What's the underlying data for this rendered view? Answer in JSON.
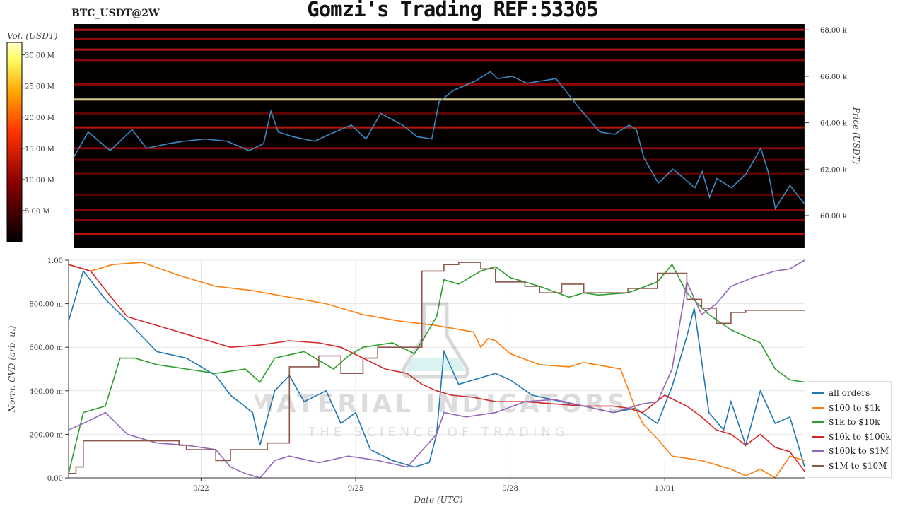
{
  "header": {
    "title": "Gomzi's Trading REF:53305",
    "symbol": "BTC_USDT@2W"
  },
  "watermark": {
    "brand": "MATERIAL INDICATORS",
    "tagline": "THE SCIENCE OF TRADING"
  },
  "chart_data": [
    {
      "type": "heatmap",
      "title": "",
      "colorbar": {
        "label": "Vol. (USDT)",
        "ticks": [
          "5.00 M",
          "10.00 M",
          "15.00 M",
          "20.00 M",
          "25.00 M",
          "30.00 M"
        ],
        "range": [
          0,
          32
        ],
        "colors": [
          "#000000",
          "#8b0000",
          "#ff3300",
          "#ffa500",
          "#ffff66",
          "#ffffcc"
        ]
      },
      "ylabel": "Price (USDT)",
      "yticks": [
        "60.00 k",
        "62.00 k",
        "64.00 k",
        "66.00 k",
        "68.00 k"
      ],
      "ylim": [
        58600,
        68250
      ],
      "price_series": {
        "color": "#3b88c3",
        "x": [
          0,
          0.02,
          0.05,
          0.08,
          0.1,
          0.13,
          0.15,
          0.18,
          0.21,
          0.24,
          0.26,
          0.27,
          0.28,
          0.3,
          0.33,
          0.35,
          0.38,
          0.4,
          0.42,
          0.45,
          0.47,
          0.49,
          0.5,
          0.52,
          0.55,
          0.57,
          0.58,
          0.6,
          0.62,
          0.64,
          0.66,
          0.69,
          0.72,
          0.74,
          0.76,
          0.77,
          0.78,
          0.8,
          0.82,
          0.85,
          0.86,
          0.87,
          0.88,
          0.9,
          0.92,
          0.94,
          0.95,
          0.96,
          0.98,
          1.0
        ],
        "y": [
          62500,
          63600,
          62800,
          63700,
          62900,
          63100,
          63200,
          63300,
          63200,
          62800,
          63100,
          64500,
          63600,
          63400,
          63200,
          63500,
          63900,
          63300,
          64400,
          63900,
          63400,
          63300,
          64900,
          65400,
          65800,
          66200,
          65900,
          66000,
          65700,
          65800,
          65900,
          64700,
          63600,
          63500,
          63900,
          63700,
          62500,
          61400,
          62000,
          61200,
          61900,
          60800,
          61600,
          61200,
          61800,
          62900,
          61900,
          60300,
          61300,
          60500
        ]
      },
      "levels": [
        {
          "price": 68000,
          "v": 13
        },
        {
          "price": 67600,
          "v": 11
        },
        {
          "price": 67150,
          "v": 16
        },
        {
          "price": 66700,
          "v": 9
        },
        {
          "price": 65650,
          "v": 12
        },
        {
          "price": 65000,
          "v": 30
        },
        {
          "price": 64400,
          "v": 8
        },
        {
          "price": 63800,
          "v": 14
        },
        {
          "price": 62900,
          "v": 10
        },
        {
          "price": 62400,
          "v": 8
        },
        {
          "price": 61800,
          "v": 7
        },
        {
          "price": 60900,
          "v": 6
        },
        {
          "price": 60250,
          "v": 9
        },
        {
          "price": 59800,
          "v": 12
        },
        {
          "price": 59200,
          "v": 14
        }
      ]
    },
    {
      "type": "line",
      "title": "",
      "xlabel": "Date (UTC)",
      "ylabel": "Norm. CVD (arb. u.)",
      "xticks": [
        {
          "label": "9/22",
          "x": 0.18
        },
        {
          "label": "9/25",
          "x": 0.39
        },
        {
          "label": "9/28",
          "x": 0.6
        },
        {
          "label": "10/01",
          "x": 0.81
        }
      ],
      "yticks": [
        "0.00",
        "200.00 m",
        "400.00 m",
        "600.00 m",
        "800.00 m",
        "1.00"
      ],
      "ylim": [
        0,
        1
      ],
      "series": [
        {
          "name": "all orders",
          "color": "#1f77b4",
          "x": [
            0,
            0.02,
            0.05,
            0.08,
            0.12,
            0.16,
            0.2,
            0.22,
            0.25,
            0.26,
            0.28,
            0.3,
            0.32,
            0.35,
            0.37,
            0.39,
            0.41,
            0.44,
            0.47,
            0.49,
            0.5,
            0.51,
            0.53,
            0.55,
            0.58,
            0.6,
            0.63,
            0.67,
            0.7,
            0.74,
            0.77,
            0.8,
            0.82,
            0.84,
            0.85,
            0.87,
            0.89,
            0.9,
            0.92,
            0.94,
            0.96,
            0.98,
            1.0
          ],
          "y": [
            0.72,
            0.95,
            0.82,
            0.72,
            0.58,
            0.55,
            0.47,
            0.38,
            0.3,
            0.15,
            0.4,
            0.47,
            0.35,
            0.4,
            0.25,
            0.3,
            0.13,
            0.08,
            0.05,
            0.07,
            0.2,
            0.58,
            0.43,
            0.45,
            0.48,
            0.45,
            0.38,
            0.35,
            0.33,
            0.3,
            0.32,
            0.25,
            0.42,
            0.65,
            0.78,
            0.3,
            0.22,
            0.35,
            0.15,
            0.4,
            0.25,
            0.28,
            0.05
          ]
        },
        {
          "name": "$100 to $1k",
          "color": "#ff7f0e",
          "x": [
            0,
            0.03,
            0.06,
            0.1,
            0.15,
            0.2,
            0.25,
            0.3,
            0.35,
            0.4,
            0.45,
            0.5,
            0.55,
            0.56,
            0.57,
            0.58,
            0.6,
            0.64,
            0.68,
            0.7,
            0.75,
            0.77,
            0.78,
            0.8,
            0.82,
            0.86,
            0.9,
            0.92,
            0.94,
            0.96,
            0.98,
            1.0
          ],
          "y": [
            0.98,
            0.95,
            0.98,
            0.99,
            0.93,
            0.88,
            0.86,
            0.83,
            0.8,
            0.75,
            0.72,
            0.7,
            0.67,
            0.6,
            0.64,
            0.63,
            0.57,
            0.52,
            0.51,
            0.53,
            0.5,
            0.32,
            0.25,
            0.18,
            0.1,
            0.08,
            0.04,
            0.01,
            0.04,
            0.0,
            0.1,
            0.08
          ]
        },
        {
          "name": "$1k to $10k",
          "color": "#2ca02c",
          "x": [
            0,
            0.02,
            0.05,
            0.07,
            0.09,
            0.12,
            0.16,
            0.2,
            0.24,
            0.26,
            0.28,
            0.32,
            0.36,
            0.38,
            0.4,
            0.44,
            0.47,
            0.5,
            0.51,
            0.53,
            0.56,
            0.58,
            0.6,
            0.64,
            0.68,
            0.7,
            0.72,
            0.76,
            0.8,
            0.82,
            0.84,
            0.87,
            0.9,
            0.92,
            0.94,
            0.96,
            0.98,
            1.0
          ],
          "y": [
            0.02,
            0.3,
            0.33,
            0.55,
            0.55,
            0.52,
            0.5,
            0.48,
            0.5,
            0.44,
            0.55,
            0.58,
            0.5,
            0.56,
            0.6,
            0.62,
            0.57,
            0.74,
            0.91,
            0.89,
            0.95,
            0.97,
            0.92,
            0.88,
            0.83,
            0.85,
            0.84,
            0.85,
            0.9,
            0.98,
            0.85,
            0.75,
            0.68,
            0.65,
            0.62,
            0.5,
            0.45,
            0.44
          ]
        },
        {
          "name": "$10k to $100k",
          "color": "#d62728",
          "x": [
            0,
            0.03,
            0.06,
            0.08,
            0.12,
            0.16,
            0.2,
            0.22,
            0.26,
            0.28,
            0.3,
            0.34,
            0.37,
            0.4,
            0.43,
            0.46,
            0.48,
            0.5,
            0.52,
            0.55,
            0.58,
            0.62,
            0.66,
            0.7,
            0.74,
            0.76,
            0.78,
            0.81,
            0.84,
            0.86,
            0.88,
            0.9,
            0.92,
            0.94,
            0.96,
            0.98,
            1.0
          ],
          "y": [
            0.98,
            0.95,
            0.82,
            0.74,
            0.7,
            0.66,
            0.62,
            0.6,
            0.61,
            0.62,
            0.63,
            0.62,
            0.6,
            0.55,
            0.5,
            0.48,
            0.43,
            0.4,
            0.38,
            0.37,
            0.35,
            0.35,
            0.34,
            0.33,
            0.33,
            0.32,
            0.3,
            0.38,
            0.33,
            0.28,
            0.22,
            0.2,
            0.15,
            0.2,
            0.14,
            0.12,
            0.03
          ]
        },
        {
          "name": "$100k to $1M",
          "color": "#9467bd",
          "x": [
            0,
            0.02,
            0.05,
            0.08,
            0.12,
            0.16,
            0.2,
            0.22,
            0.24,
            0.26,
            0.28,
            0.3,
            0.34,
            0.38,
            0.42,
            0.46,
            0.5,
            0.51,
            0.54,
            0.58,
            0.62,
            0.66,
            0.7,
            0.74,
            0.78,
            0.8,
            0.82,
            0.84,
            0.86,
            0.88,
            0.9,
            0.93,
            0.96,
            0.98,
            1.0
          ],
          "y": [
            0.22,
            0.25,
            0.3,
            0.2,
            0.16,
            0.15,
            0.13,
            0.05,
            0.02,
            0.0,
            0.08,
            0.1,
            0.07,
            0.1,
            0.08,
            0.05,
            0.2,
            0.3,
            0.28,
            0.3,
            0.35,
            0.36,
            0.33,
            0.3,
            0.34,
            0.35,
            0.5,
            0.9,
            0.75,
            0.8,
            0.88,
            0.92,
            0.95,
            0.96,
            1.0
          ]
        },
        {
          "name": "$1M to $10M",
          "color": "#8c564b",
          "step": true,
          "x": [
            0,
            0.01,
            0.02,
            0.15,
            0.16,
            0.2,
            0.22,
            0.26,
            0.27,
            0.3,
            0.34,
            0.37,
            0.4,
            0.42,
            0.44,
            0.48,
            0.5,
            0.51,
            0.53,
            0.56,
            0.58,
            0.62,
            0.64,
            0.67,
            0.7,
            0.74,
            0.76,
            0.8,
            0.82,
            0.84,
            0.86,
            0.88,
            0.9,
            0.92,
            0.94,
            1.0
          ],
          "y": [
            0.02,
            0.05,
            0.17,
            0.15,
            0.13,
            0.08,
            0.13,
            0.13,
            0.16,
            0.51,
            0.56,
            0.48,
            0.55,
            0.6,
            0.6,
            0.95,
            0.95,
            0.98,
            0.99,
            0.96,
            0.9,
            0.88,
            0.85,
            0.89,
            0.85,
            0.85,
            0.87,
            0.94,
            0.94,
            0.82,
            0.78,
            0.71,
            0.76,
            0.77,
            0.77,
            0.77
          ]
        }
      ]
    }
  ]
}
